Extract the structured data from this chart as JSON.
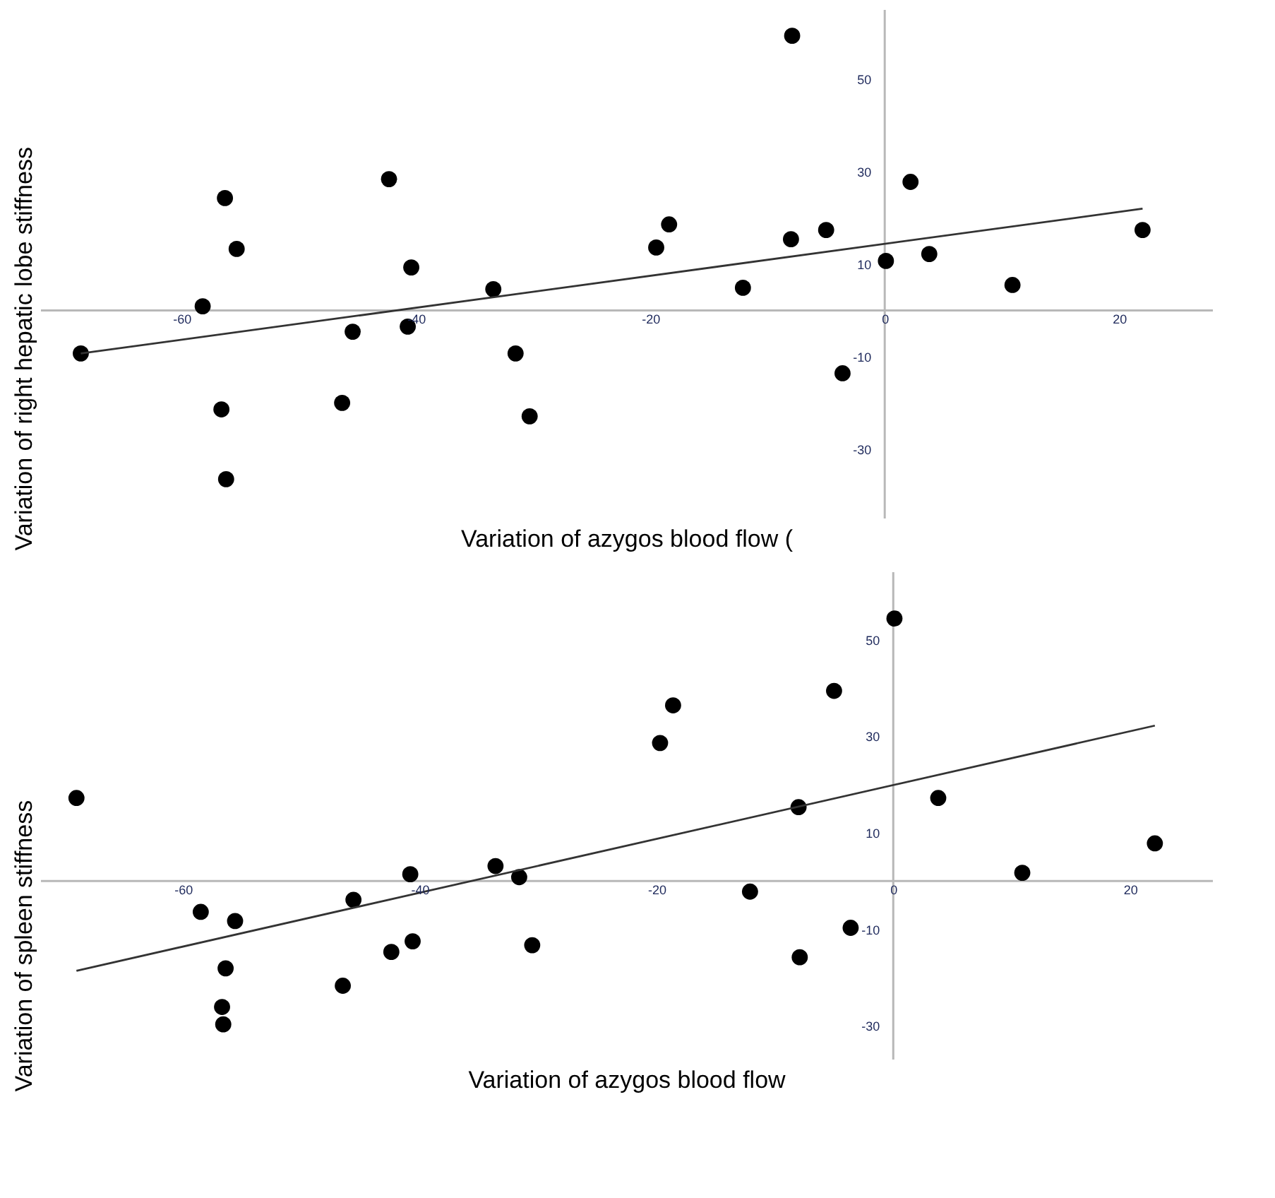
{
  "chart_data": [
    {
      "type": "scatter",
      "xlabel": "Variation of azygos blood flow (",
      "ylabel": "Variation of right hepatic lobe stiffness",
      "xlim": [
        -72,
        28
      ],
      "ylim": [
        -45,
        65
      ],
      "xticks": [
        -60,
        -40,
        -20,
        0,
        20
      ],
      "yticks": [
        -30,
        -10,
        10,
        30,
        50
      ],
      "marker": "circle",
      "series": [
        {
          "color": "#000000",
          "x": [
            -68.6,
            -58.2,
            -56.3,
            -56.6,
            -56.2,
            -55.3,
            -46.3,
            -45.4,
            -42.3,
            -40.7,
            -40.4,
            -33.4,
            -31.5,
            -30.3,
            -19.5,
            -18.4,
            -12.1,
            -8.0,
            -7.9,
            -5.0,
            -3.6,
            0.1,
            2.2,
            3.8,
            10.9,
            22.0
          ],
          "values": [
            -9.3,
            0.9,
            24.3,
            -21.4,
            -36.5,
            13.3,
            -20,
            -4.6,
            28.4,
            -3.5,
            9.3,
            4.6,
            -9.3,
            -22.9,
            13.6,
            18.6,
            4.9,
            15.4,
            59.4,
            17.4,
            -13.6,
            10.7,
            27.8,
            12.2,
            5.5,
            17.4
          ]
        },
        {
          "type": "line",
          "marker": "none",
          "color": "#333333",
          "x": [
            -68.6,
            22.0
          ],
          "values": [
            -9.3,
            22.0
          ]
        }
      ]
    },
    {
      "type": "scatter",
      "xlabel": "Variation of azygos blood flow",
      "ylabel": "Variation of spleen stiffness",
      "xlim": [
        -72,
        27
      ],
      "ylim": [
        -37,
        64
      ],
      "xticks": [
        -60,
        -40,
        -20,
        0,
        20
      ],
      "yticks": [
        -30,
        -10,
        10,
        30,
        50
      ],
      "marker": "circle",
      "series": [
        {
          "color": "#000000",
          "x": [
            -69.0,
            -58.5,
            -55.6,
            -56.4,
            -56.7,
            -56.6,
            -45.6,
            -46.5,
            -42.4,
            -40.8,
            -40.6,
            -33.6,
            -31.6,
            -30.5,
            -19.7,
            -18.6,
            -12.1,
            -8.0,
            -7.9,
            -5.0,
            -3.6,
            0.1,
            3.8,
            10.9,
            22.1
          ],
          "values": [
            17.2,
            -6.4,
            -8.3,
            -18.1,
            -26.1,
            -29.7,
            -3.9,
            -21.7,
            -14.7,
            1.4,
            -12.5,
            3.1,
            0.8,
            -13.3,
            28.6,
            36.4,
            -2.2,
            15.3,
            -15.8,
            39.4,
            -9.7,
            54.4,
            17.2,
            1.7,
            7.8
          ]
        },
        {
          "type": "line",
          "marker": "none",
          "color": "#333333",
          "x": [
            -69.0,
            22.1
          ],
          "values": [
            -18.6,
            32.2
          ]
        }
      ]
    }
  ]
}
